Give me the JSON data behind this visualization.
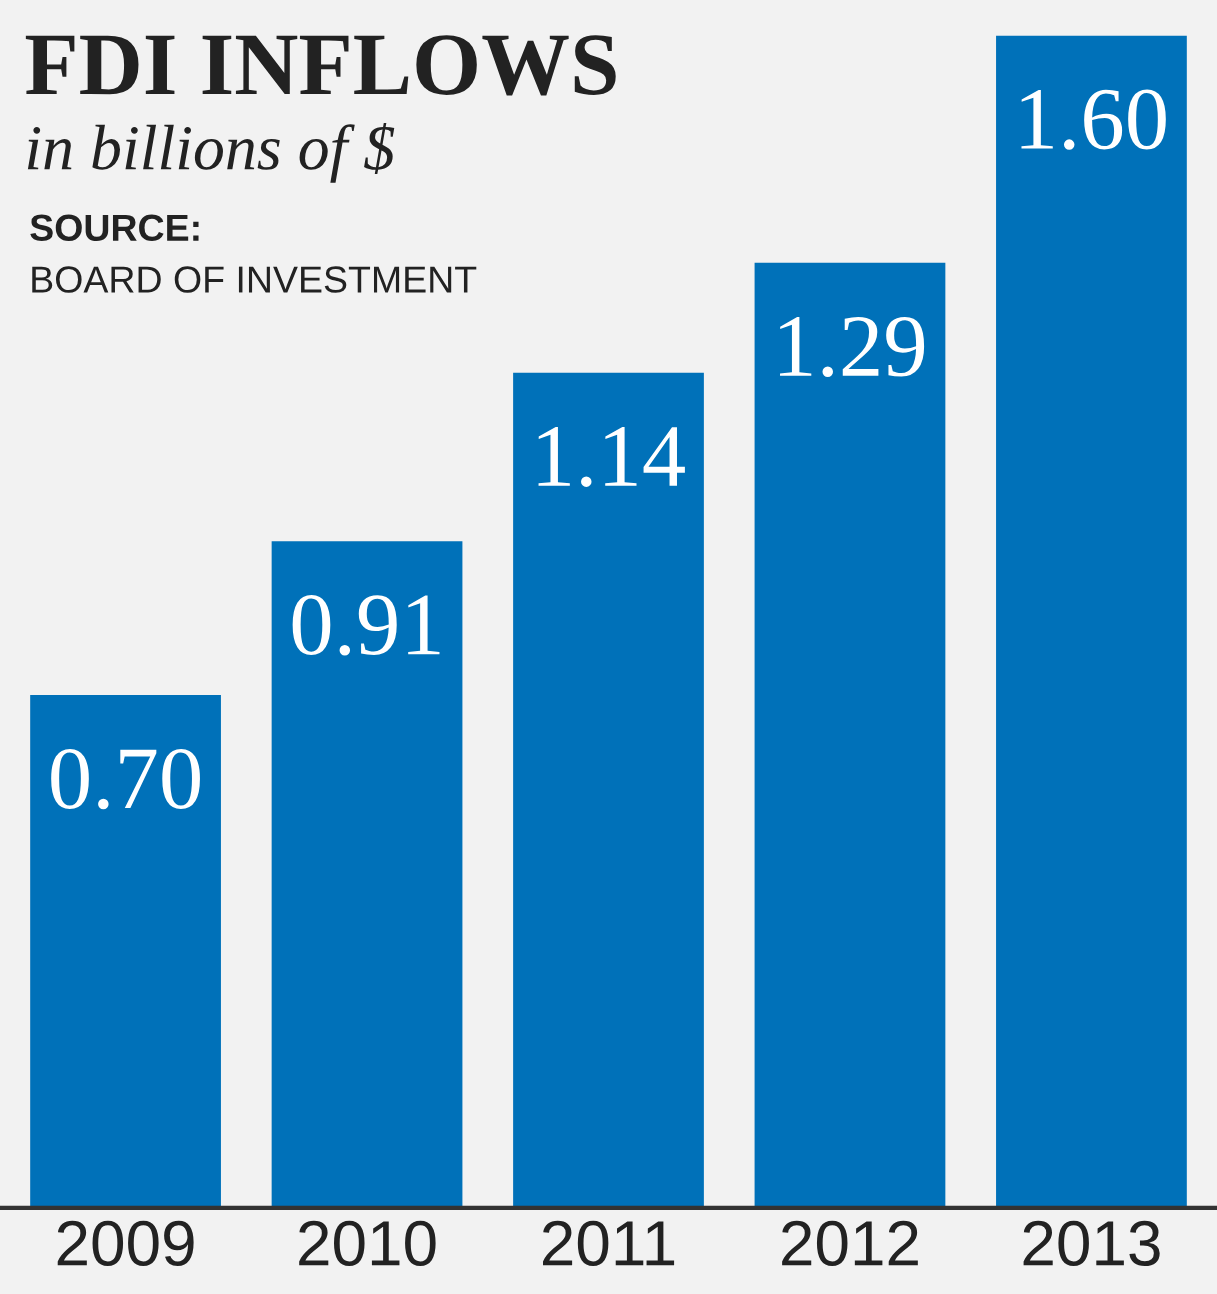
{
  "chart_data": {
    "type": "bar",
    "title": "FDI INFLOWS",
    "subtitle": "in billions of $",
    "annotations": [
      "SOURCE:",
      "BOARD OF INVESTMENT"
    ],
    "categories": [
      "2009",
      "2010",
      "2011",
      "2012",
      "2013"
    ],
    "values": [
      0.7,
      0.91,
      1.14,
      1.29,
      1.6
    ],
    "value_labels": [
      "0.70",
      "0.91",
      "1.14",
      "1.29",
      "1.60"
    ],
    "color": "#0071b9",
    "grid": false,
    "legend": false
  }
}
